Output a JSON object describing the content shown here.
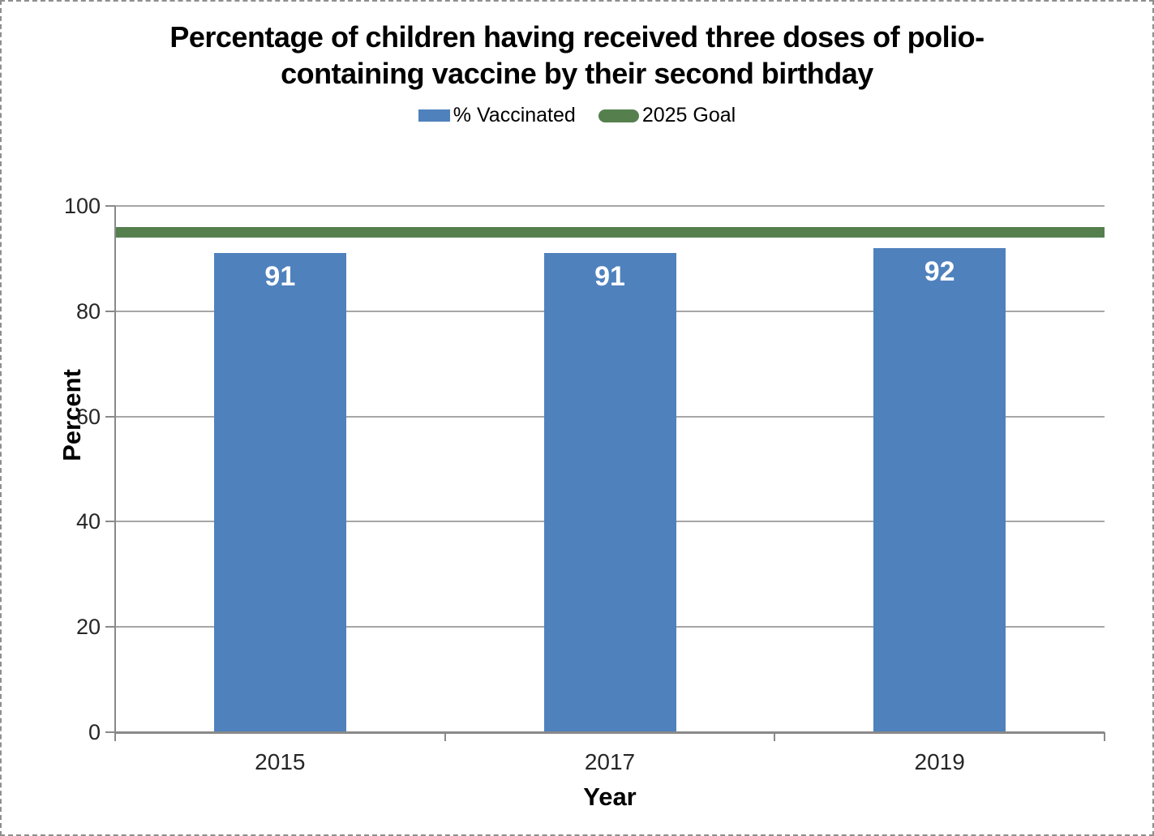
{
  "window": {
    "background": "#ffffff",
    "border_color": "#8f8f8f"
  },
  "chart_data": {
    "type": "bar",
    "title": "Percentage of children having received three doses of polio-containing vaccine by their second birthday",
    "title_lines": [
      "Percentage of children having received three doses of polio-",
      "containing vaccine by their second birthday"
    ],
    "categories": [
      "2015",
      "2017",
      "2019"
    ],
    "series": [
      {
        "name": "% Vaccinated",
        "type": "bar",
        "values": [
          91,
          91,
          92
        ],
        "data_labels": [
          "91",
          "91",
          "92"
        ],
        "color": "#4F81BD",
        "data_label_color": "#FFFFFF"
      },
      {
        "name": "2025 Goal",
        "type": "goal-line",
        "value": 95,
        "color": "#55804E"
      }
    ],
    "xlabel": "Year",
    "ylabel": "Percent",
    "ylim": [
      0,
      100
    ],
    "yticks": [
      0,
      20,
      40,
      60,
      80,
      100
    ],
    "grid": true,
    "legend_position": "top",
    "axis_color": "#898989",
    "gridline_color": "#A6A6A6"
  },
  "legend": {
    "items": [
      {
        "label": "% Vaccinated",
        "color": "#4F81BD",
        "swatch": "rect"
      },
      {
        "label": "2025 Goal",
        "color": "#55804E",
        "swatch": "capsule"
      }
    ]
  }
}
